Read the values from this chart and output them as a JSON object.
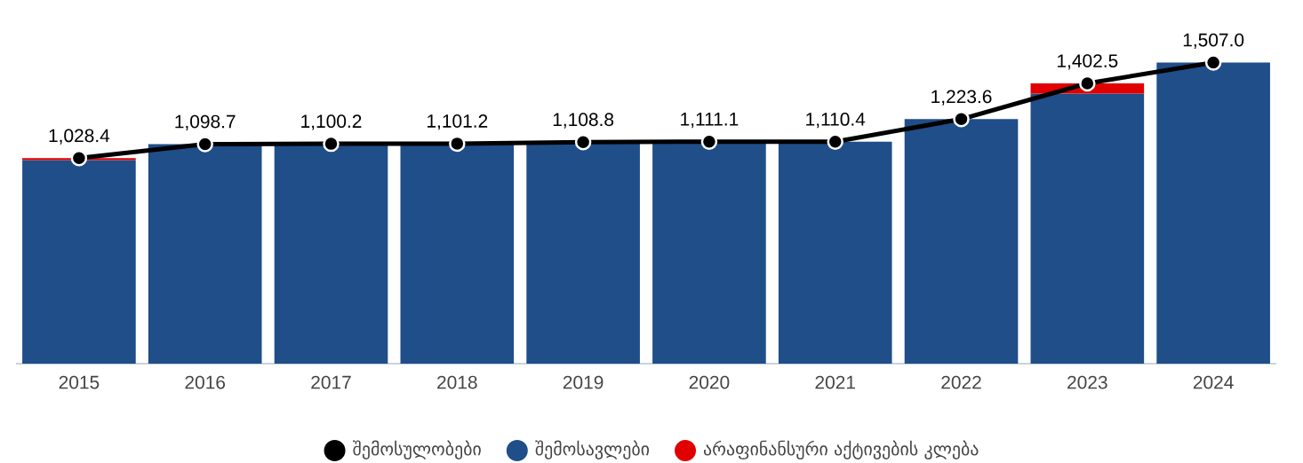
{
  "chart_data": {
    "type": "bar",
    "stacked": true,
    "categories": [
      "2015",
      "2016",
      "2017",
      "2018",
      "2019",
      "2020",
      "2021",
      "2022",
      "2023",
      "2024"
    ],
    "tick_labels": "x",
    "legend": "bottom",
    "series": [
      {
        "name": "შემოსულობები",
        "type": "line",
        "color": "#000000",
        "marker": "circle",
        "values": [
          1028.4,
          1098.7,
          1100.2,
          1101.2,
          1108.8,
          1111.1,
          1110.4,
          1223.6,
          1402.5,
          1507.0
        ],
        "value_labels": [
          "1,028.4",
          "1,098.7",
          "1,100.2",
          "1,101.2",
          "1,108.8",
          "1,111.1",
          "1,110.4",
          "1,223.6",
          "1,402.5",
          "1,507.0"
        ]
      },
      {
        "name": "შემოსავლები",
        "color": "#1f4e89",
        "values": [
          1019,
          1098.7,
          1100.2,
          1101.2,
          1108.8,
          1111.1,
          1110.4,
          1223.6,
          1352,
          1507.0
        ]
      },
      {
        "name": "არაფინანსური აქტივების კლება",
        "color": "#e00000",
        "values": [
          9.4,
          null,
          null,
          null,
          null,
          null,
          null,
          null,
          50.5,
          null
        ]
      }
    ]
  }
}
